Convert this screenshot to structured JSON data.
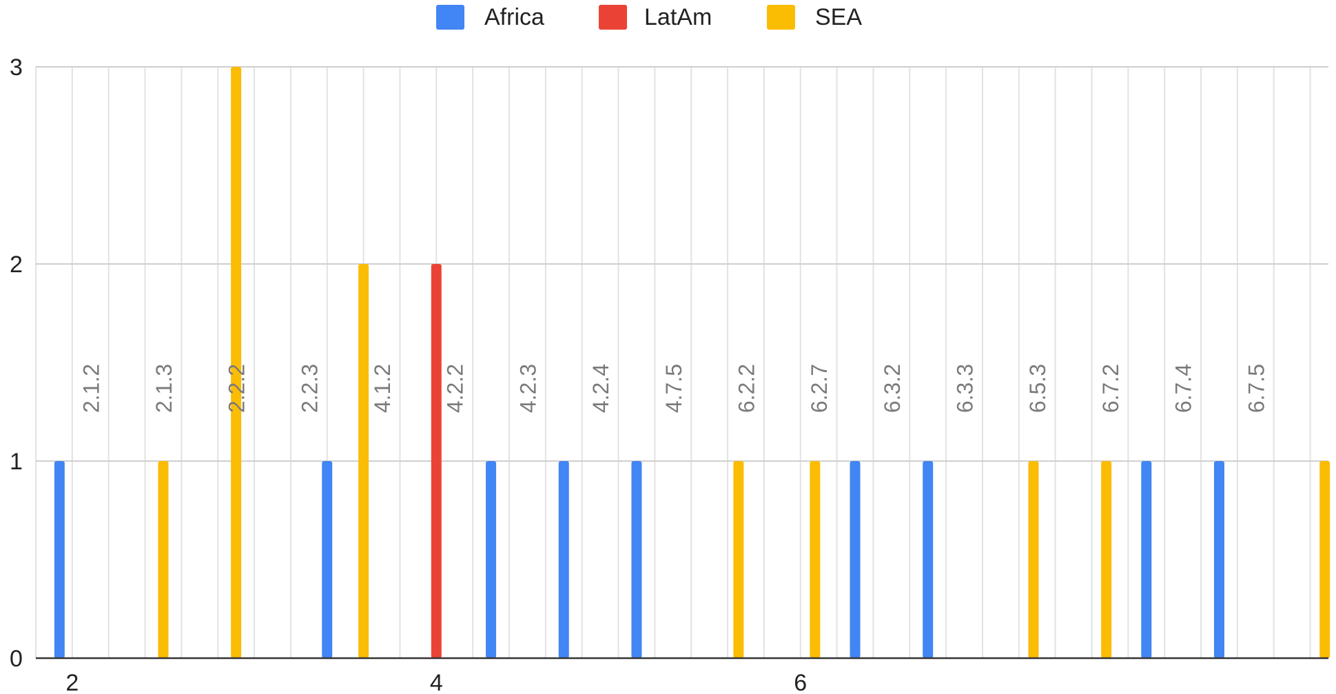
{
  "chart_data": {
    "type": "bar",
    "categories": [
      "2.1.2",
      "2.1.3",
      "2.2.2",
      "2.2.3",
      "4.1.2",
      "4.2.2",
      "4.2.3",
      "4.2.4",
      "4.7.5",
      "6.2.2",
      "6.2.7",
      "6.3.2",
      "6.3.3",
      "6.5.3",
      "6.7.2",
      "6.7.4",
      "6.7.5"
    ],
    "series": [
      {
        "name": "Africa",
        "color": "#4285F4",
        "points": [
          {
            "x": 1.93,
            "y": 1
          },
          {
            "x": 3.4,
            "y": 1
          },
          {
            "x": 4.3,
            "y": 1
          },
          {
            "x": 4.7,
            "y": 1
          },
          {
            "x": 5.1,
            "y": 1
          },
          {
            "x": 6.3,
            "y": 1
          },
          {
            "x": 6.7,
            "y": 1
          },
          {
            "x": 7.9,
            "y": 1
          },
          {
            "x": 8.3,
            "y": 1
          }
        ]
      },
      {
        "name": "LatAm",
        "color": "#EA4335",
        "points": [
          {
            "x": 4.0,
            "y": 2
          }
        ]
      },
      {
        "name": "SEA",
        "color": "#FBBC04",
        "points": [
          {
            "x": 2.5,
            "y": 1
          },
          {
            "x": 2.9,
            "y": 3
          },
          {
            "x": 3.6,
            "y": 2
          },
          {
            "x": 5.66,
            "y": 1
          },
          {
            "x": 6.08,
            "y": 1
          },
          {
            "x": 7.28,
            "y": 1
          },
          {
            "x": 7.68,
            "y": 1
          },
          {
            "x": 8.88,
            "y": 1
          }
        ]
      }
    ],
    "category_label_x": [
      2.1,
      2.5,
      2.9,
      3.3,
      3.7,
      4.1,
      4.5,
      4.9,
      5.3,
      5.7,
      6.1,
      6.5,
      6.9,
      7.3,
      7.7,
      8.1,
      8.5
    ],
    "x_ticks": [
      2,
      4,
      6
    ],
    "y_ticks": [
      0,
      1,
      2,
      3
    ],
    "xlim": [
      1.8,
      8.9
    ],
    "ylim": [
      0,
      3
    ],
    "grid": true,
    "legend": "top"
  }
}
